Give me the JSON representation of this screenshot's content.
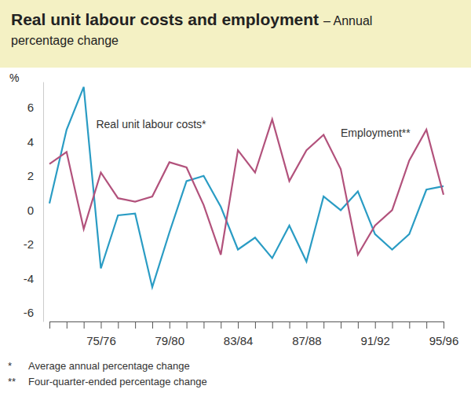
{
  "chart_data": {
    "type": "line",
    "title": "Real unit labour costs and employment",
    "subtitle": "– Annual percentage change",
    "y_label": "%",
    "categories": [
      null,
      null,
      null,
      "75/76",
      null,
      null,
      null,
      "79/80",
      null,
      null,
      null,
      "83/84",
      null,
      null,
      null,
      "87/88",
      null,
      null,
      null,
      "91/92",
      null,
      null,
      null,
      "95/96"
    ],
    "series": [
      {
        "name": "Real unit labour costs*",
        "color": "#2a9cc4",
        "values": [
          0.4,
          4.7,
          7.2,
          -3.4,
          -0.3,
          -0.2,
          -4.5,
          -1.3,
          1.7,
          2.0,
          0.2,
          -2.3,
          -1.6,
          -2.8,
          -0.9,
          -3.0,
          0.8,
          0.0,
          1.1,
          -1.4,
          -2.3,
          -1.4,
          1.2,
          1.4
        ]
      },
      {
        "name": "Employment**",
        "color": "#b2527c",
        "values": [
          2.7,
          3.4,
          -1.1,
          2.2,
          0.7,
          0.5,
          0.8,
          2.8,
          2.5,
          0.3,
          -2.6,
          3.5,
          2.2,
          5.3,
          1.7,
          3.5,
          4.4,
          2.4,
          -2.6,
          -0.9,
          0.0,
          2.9,
          4.7,
          0.9
        ]
      }
    ],
    "ylim": [
      -6.5,
      7.5
    ],
    "yticks": [
      -6,
      -4,
      -2,
      0,
      2,
      4,
      6
    ],
    "grid": false,
    "notes": [
      {
        "mark": "*",
        "text": "Average annual percentage change"
      },
      {
        "mark": "**",
        "text": "Four-quarter-ended percentage change"
      }
    ]
  }
}
